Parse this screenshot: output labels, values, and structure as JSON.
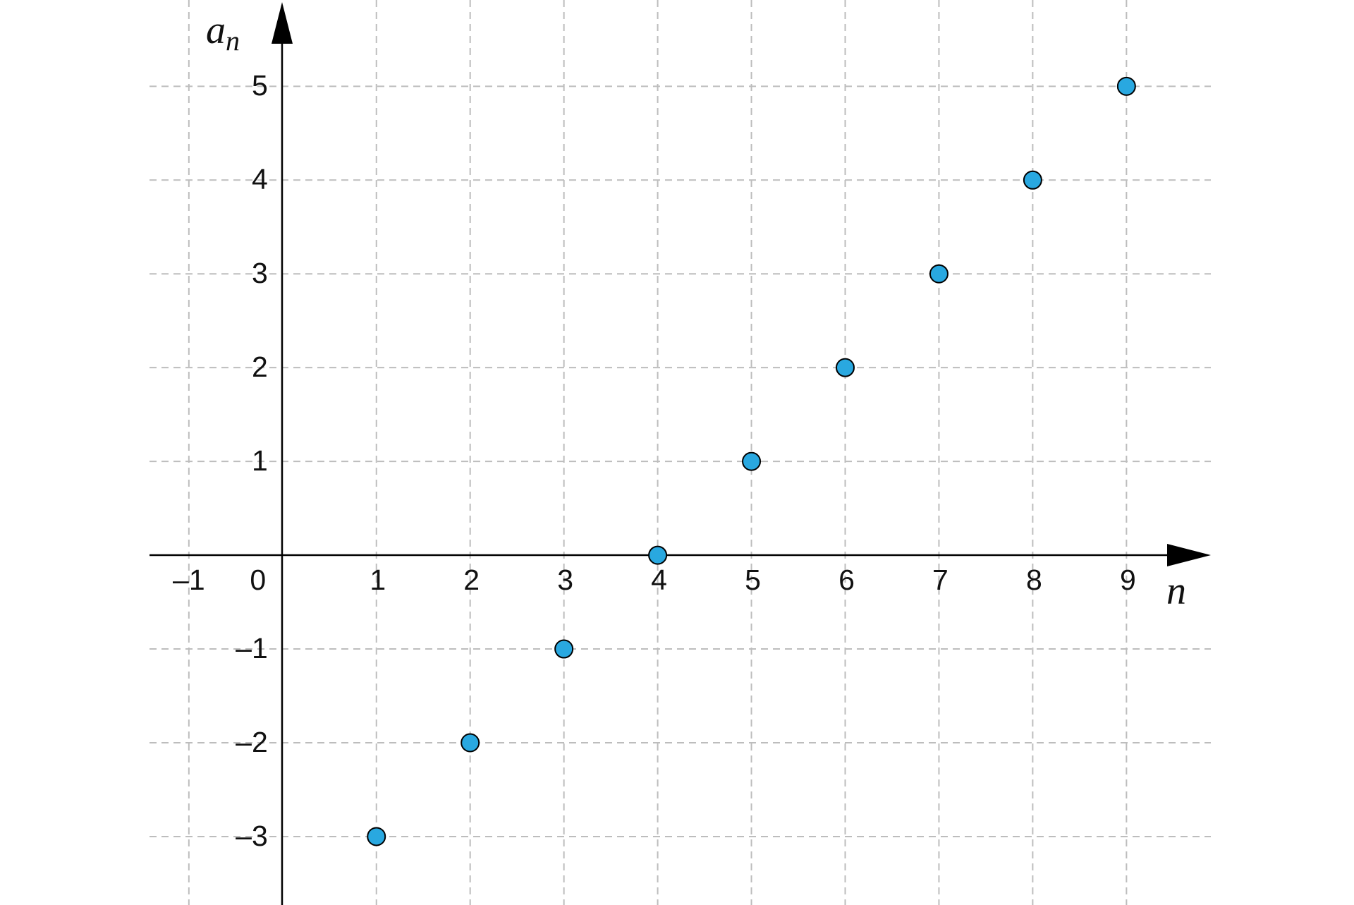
{
  "chart_data": {
    "type": "scatter",
    "x": [
      1,
      2,
      3,
      4,
      5,
      6,
      7,
      8,
      9
    ],
    "values": [
      -3,
      -2,
      -1,
      0,
      1,
      2,
      3,
      4,
      5
    ],
    "color": "#29a8e0",
    "xlabel": "n",
    "ylabel": "a",
    "ylabel_subscript": "n",
    "xlim": [
      -1.42,
      9.9
    ],
    "ylim": [
      -3.73,
      5.92
    ],
    "xticks": [
      {
        "value": -1,
        "label": "–1"
      },
      0,
      1,
      2,
      3,
      4,
      5,
      6,
      7,
      8,
      9
    ],
    "yticks": [
      {
        "value": -3,
        "label": "–3"
      },
      {
        "value": -2,
        "label": "–2"
      },
      {
        "value": -1,
        "label": "–1"
      },
      1,
      2,
      3,
      4,
      5
    ],
    "grid": true
  }
}
